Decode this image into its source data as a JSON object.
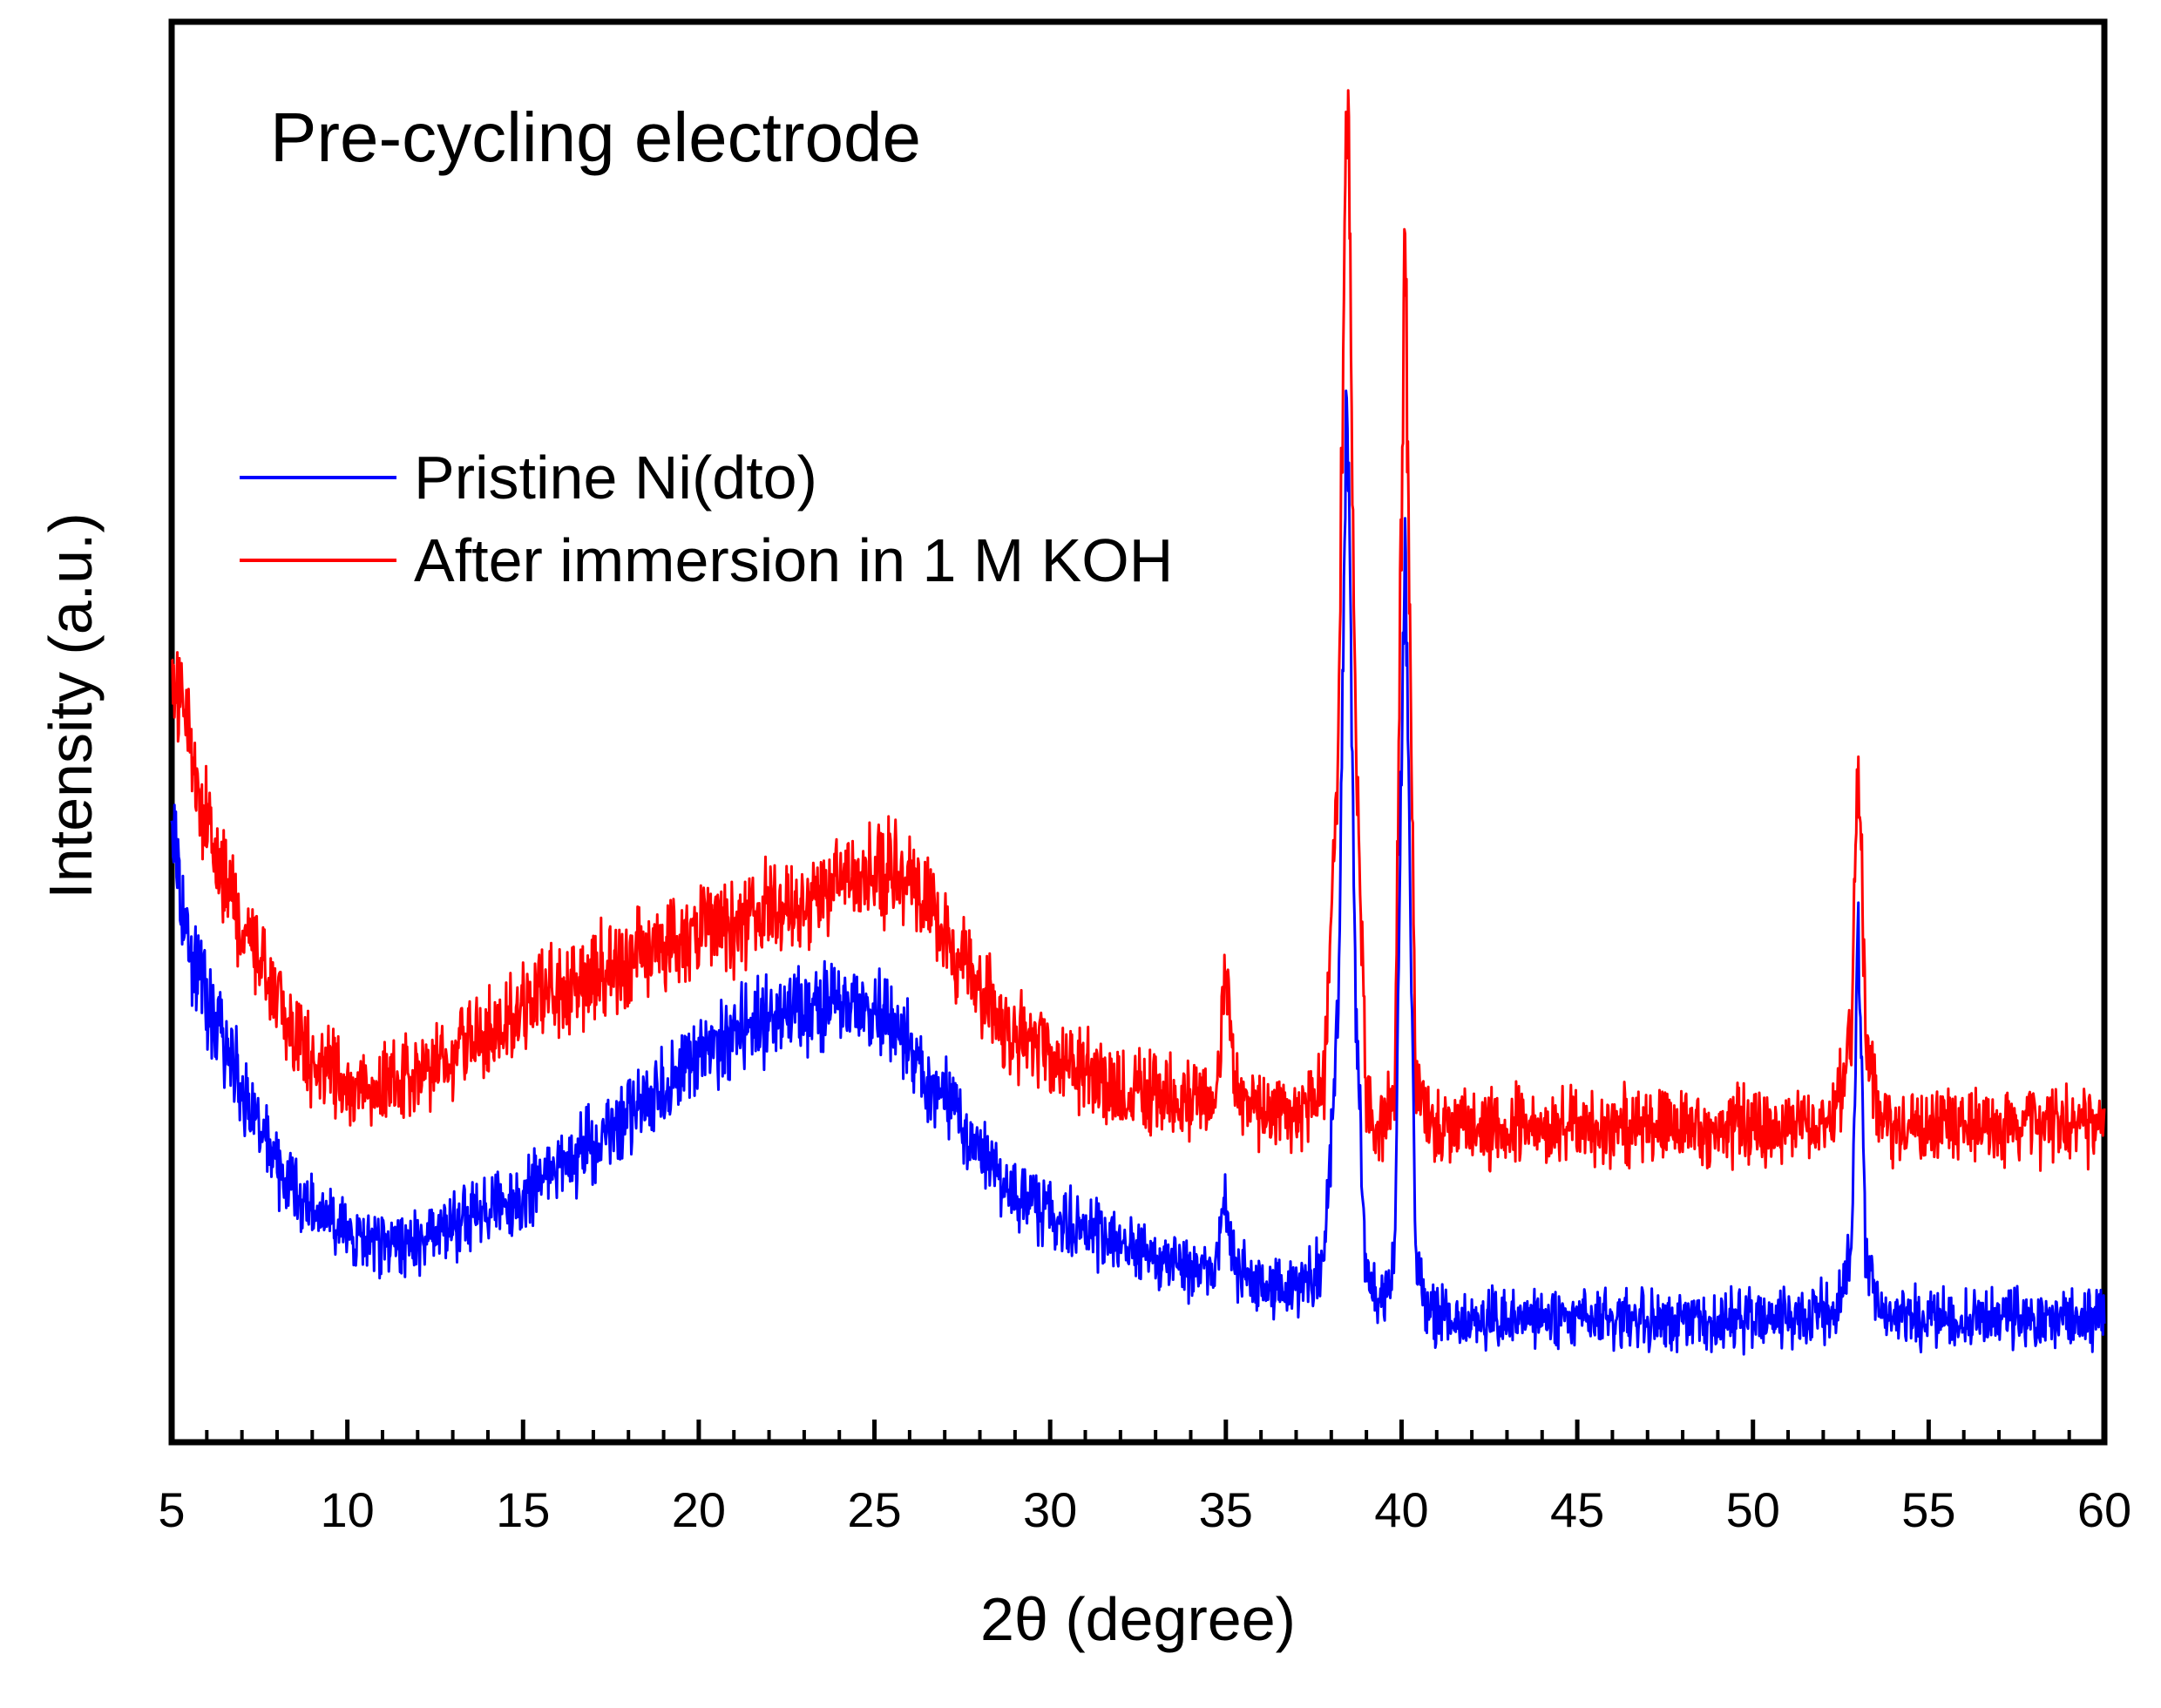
{
  "chart_data": {
    "type": "line",
    "title": "Pre-cycling electrode",
    "xlabel": "2θ (degree)",
    "ylabel": "Intensity (a.u.)",
    "xlim": [
      5,
      60
    ],
    "ylim": [
      0,
      100
    ],
    "xticks": [
      "5",
      "10",
      "15",
      "20",
      "25",
      "30",
      "35",
      "40",
      "45",
      "50",
      "55",
      "60"
    ],
    "grid": false,
    "legend_position": "middle-left",
    "series": [
      {
        "name": "Pristine Ni(dto)",
        "color": "#0000ff",
        "x": [
          5.0,
          5.5,
          6.0,
          7.0,
          8.0,
          9.0,
          10.0,
          11.0,
          12.0,
          13.0,
          14.0,
          15.0,
          16.0,
          17.0,
          18.0,
          19.0,
          20.0,
          21.0,
          22.0,
          23.0,
          24.0,
          25.0,
          26.0,
          27.0,
          28.0,
          29.0,
          30.0,
          31.0,
          32.0,
          33.0,
          34.0,
          34.7,
          35.0,
          35.3,
          36.0,
          37.0,
          37.8,
          38.2,
          38.45,
          38.7,
          39.0,
          39.4,
          39.8,
          40.1,
          40.4,
          40.8,
          41.5,
          43.0,
          45.0,
          47.0,
          49.0,
          51.0,
          52.3,
          52.8,
          53.0,
          53.2,
          53.6,
          54.5,
          56.0,
          58.0,
          60.0
        ],
        "y": [
          43,
          35,
          31,
          25,
          19,
          16,
          14,
          13.5,
          13.5,
          15,
          16,
          17,
          19,
          21,
          23,
          25,
          27,
          29,
          30,
          30.5,
          31,
          30.5,
          28,
          24,
          20,
          17,
          15.5,
          14.5,
          13.5,
          12.5,
          11.5,
          11.5,
          17,
          11.5,
          10.5,
          10,
          12,
          30,
          77,
          30,
          11,
          9,
          12,
          67,
          12,
          8.5,
          8,
          8,
          8,
          8,
          8,
          8,
          8.5,
          13,
          37,
          13,
          8.5,
          8,
          8,
          8,
          8
        ]
      },
      {
        "name": "After immersion in 1 M KOH",
        "color": "#ff0000",
        "x": [
          5.0,
          5.5,
          6.0,
          7.0,
          8.0,
          9.0,
          10.0,
          11.0,
          12.0,
          13.0,
          14.0,
          15.0,
          16.0,
          17.0,
          18.0,
          19.0,
          20.0,
          21.0,
          22.0,
          23.0,
          24.0,
          25.0,
          26.0,
          27.0,
          28.0,
          29.0,
          30.0,
          31.0,
          32.0,
          33.0,
          34.0,
          34.7,
          35.0,
          35.3,
          36.0,
          37.0,
          37.8,
          38.2,
          38.45,
          38.7,
          39.0,
          39.4,
          39.8,
          40.1,
          40.4,
          40.8,
          41.5,
          43.0,
          45.0,
          47.0,
          49.0,
          51.0,
          52.3,
          52.8,
          53.0,
          53.2,
          53.6,
          54.5,
          56.0,
          58.0,
          60.0
        ],
        "y": [
          55,
          50,
          44,
          37,
          31,
          27,
          25.5,
          25,
          25.5,
          27,
          29,
          31,
          32,
          33,
          34,
          35,
          36,
          37,
          38,
          38.5,
          39.5,
          40.5,
          40,
          36,
          32,
          29,
          27,
          26,
          25,
          24.5,
          24,
          24,
          34,
          24,
          23,
          22.5,
          25,
          50,
          100,
          50,
          24,
          21.5,
          25,
          87,
          25,
          22,
          22,
          22,
          22,
          22,
          22,
          22,
          22.5,
          28,
          51,
          28,
          22.5,
          22,
          22,
          22,
          22
        ]
      }
    ]
  }
}
